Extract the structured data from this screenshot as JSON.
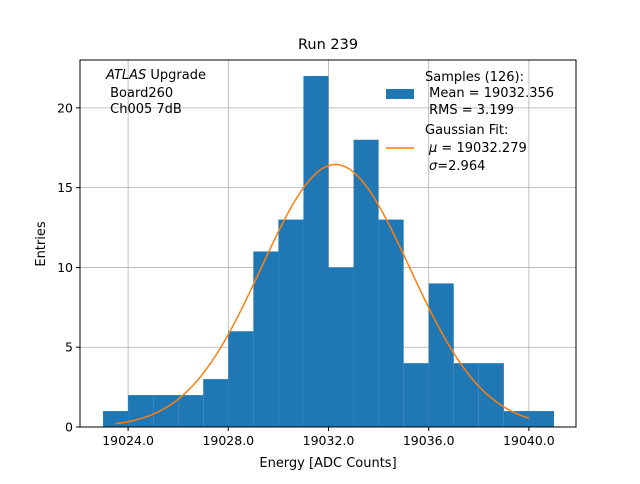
{
  "chart_data": {
    "type": "bar",
    "title": "Run 239",
    "xlabel": "Energy [ADC Counts]",
    "ylabel": "Entries",
    "xlim": [
      19022.08,
      19041.88
    ],
    "ylim": [
      0,
      23
    ],
    "xticks": [
      19024,
      19028,
      19032,
      19036,
      19040
    ],
    "xtick_labels": [
      "19024.0",
      "19028.0",
      "19032.0",
      "19036.0",
      "19040.0"
    ],
    "yticks": [
      0,
      5,
      10,
      15,
      20
    ],
    "ytick_labels": [
      "0",
      "5",
      "10",
      "15",
      "20"
    ],
    "grid": true,
    "histogram": {
      "bin_edges": [
        19023,
        19024,
        19025,
        19026,
        19027,
        19028,
        19029,
        19030,
        19031,
        19032,
        19033,
        19034,
        19035,
        19036,
        19037,
        19038,
        19039,
        19040,
        19041
      ],
      "counts": [
        1,
        2,
        2,
        2,
        3,
        6,
        11,
        13,
        22,
        10,
        18,
        13,
        4,
        9,
        4,
        4,
        1,
        1
      ],
      "color": "#1f77b4"
    },
    "fit": {
      "type": "gaussian",
      "amplitude": 16.45,
      "mu": 19032.279,
      "sigma": 2.964,
      "x_range": [
        19023.5,
        19040
      ],
      "color": "#ff7f0e"
    },
    "annotation": {
      "italic": "ATLAS",
      "line1_rest": " Upgrade",
      "line2": " Board260",
      "line3": " Ch005 7dB"
    },
    "legend": {
      "placement": "top-right",
      "samples": [
        "Samples (126):",
        " Mean = 19032.356",
        " RMS = 3.199"
      ],
      "fit_title": "Gaussian Fit:",
      "fit_mu_symbol": "μ",
      "fit_mu_rest": " = 19032.279",
      "fit_sigma_symbol": "σ",
      "fit_sigma_rest": "=2.964"
    }
  }
}
